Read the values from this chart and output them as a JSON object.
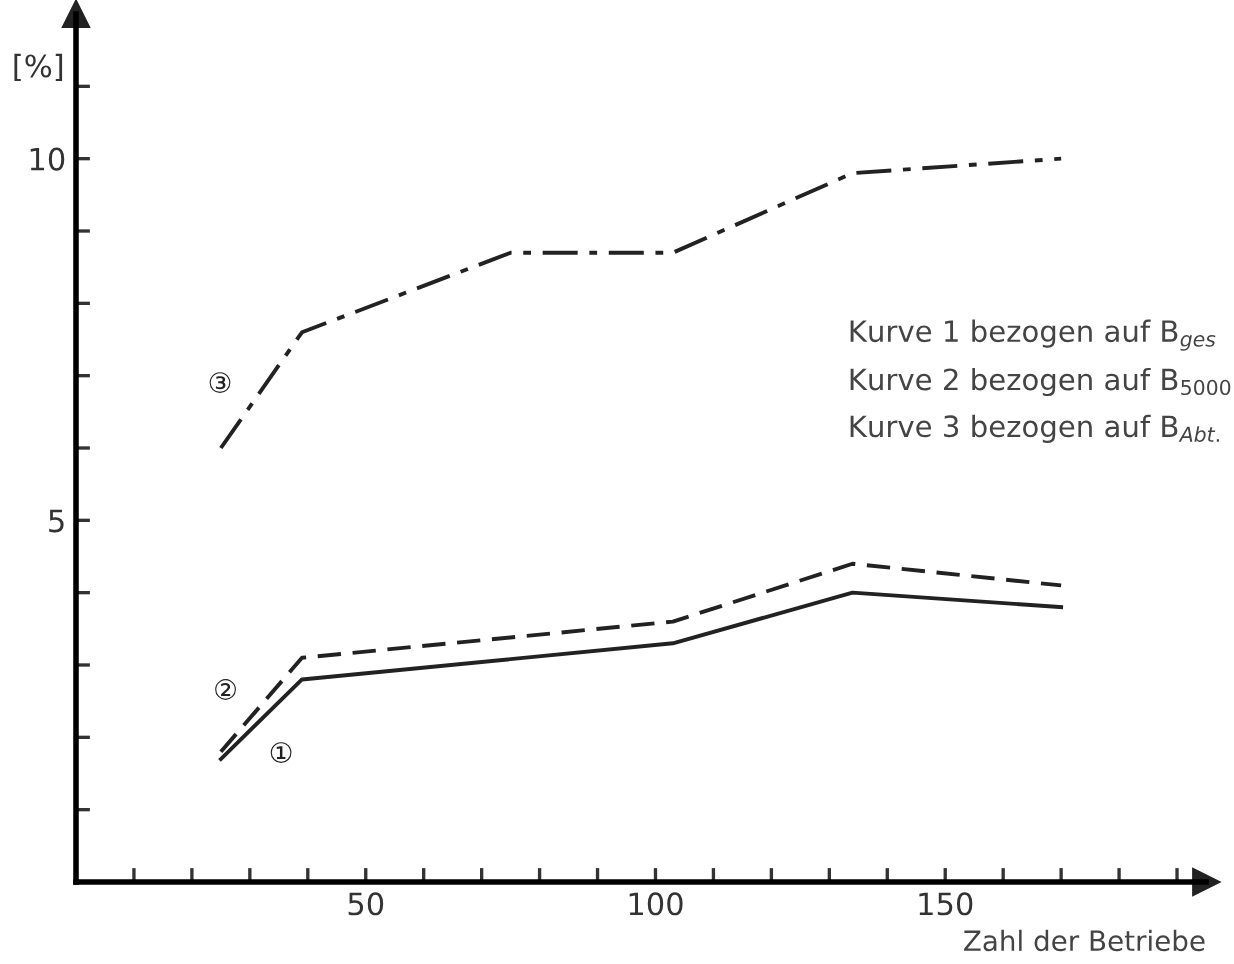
{
  "chart_data": {
    "type": "line",
    "xlabel": "Zahl der Betriebe",
    "ylabel": "[%]",
    "series": [
      {
        "name": "①",
        "color": "#222222",
        "line_style": "solid",
        "x": [
          25,
          39,
          103,
          134,
          170
        ],
        "values": [
          1.7,
          2.8,
          3.3,
          4.0,
          3.8
        ]
      },
      {
        "name": "②",
        "color": "#222222",
        "line_style": "dashed",
        "x": [
          25,
          39,
          103,
          134,
          170
        ],
        "values": [
          1.8,
          3.1,
          3.6,
          4.4,
          4.1
        ]
      },
      {
        "name": "③",
        "color": "#222222",
        "line_style": "dashdot",
        "x": [
          25,
          39,
          75,
          103,
          134,
          170
        ],
        "values": [
          6.0,
          7.6,
          8.7,
          8.7,
          9.8,
          10.0
        ]
      }
    ],
    "annotations": [
      "Kurve 1 bezogen auf B$_{ges}$",
      "Kurve 2 bezogen auf B$_{5000}$",
      "Kurve 3 bezogen auf B$_{Abt.}$"
    ],
    "xlim": [
      0,
      195
    ],
    "ylim": [
      0,
      12
    ],
    "xticks": [
      {
        "value": 10,
        "label": null
      },
      {
        "value": 20,
        "label": null
      },
      {
        "value": 30,
        "label": null
      },
      {
        "value": 40,
        "label": null
      },
      50,
      {
        "value": 60,
        "label": null
      },
      {
        "value": 70,
        "label": null
      },
      {
        "value": 80,
        "label": null
      },
      {
        "value": 90,
        "label": null
      },
      100,
      {
        "value": 110,
        "label": null
      },
      {
        "value": 120,
        "label": null
      },
      {
        "value": 130,
        "label": null
      },
      {
        "value": 140,
        "label": null
      },
      150,
      {
        "value": 160,
        "label": null
      },
      {
        "value": 170,
        "label": null
      },
      {
        "value": 180,
        "label": null
      },
      {
        "value": 190,
        "label": null
      }
    ],
    "yticks": [
      {
        "value": 1,
        "label": null
      },
      {
        "value": 2,
        "label": null
      },
      {
        "value": 3,
        "label": null
      },
      {
        "value": 4,
        "label": null
      },
      5,
      {
        "value": 6,
        "label": null
      },
      {
        "value": 7,
        "label": null
      },
      {
        "value": 8,
        "label": null
      },
      {
        "value": 9,
        "label": null
      },
      10,
      {
        "value": 11,
        "label": null
      }
    ],
    "grid": false,
    "legend": false
  }
}
